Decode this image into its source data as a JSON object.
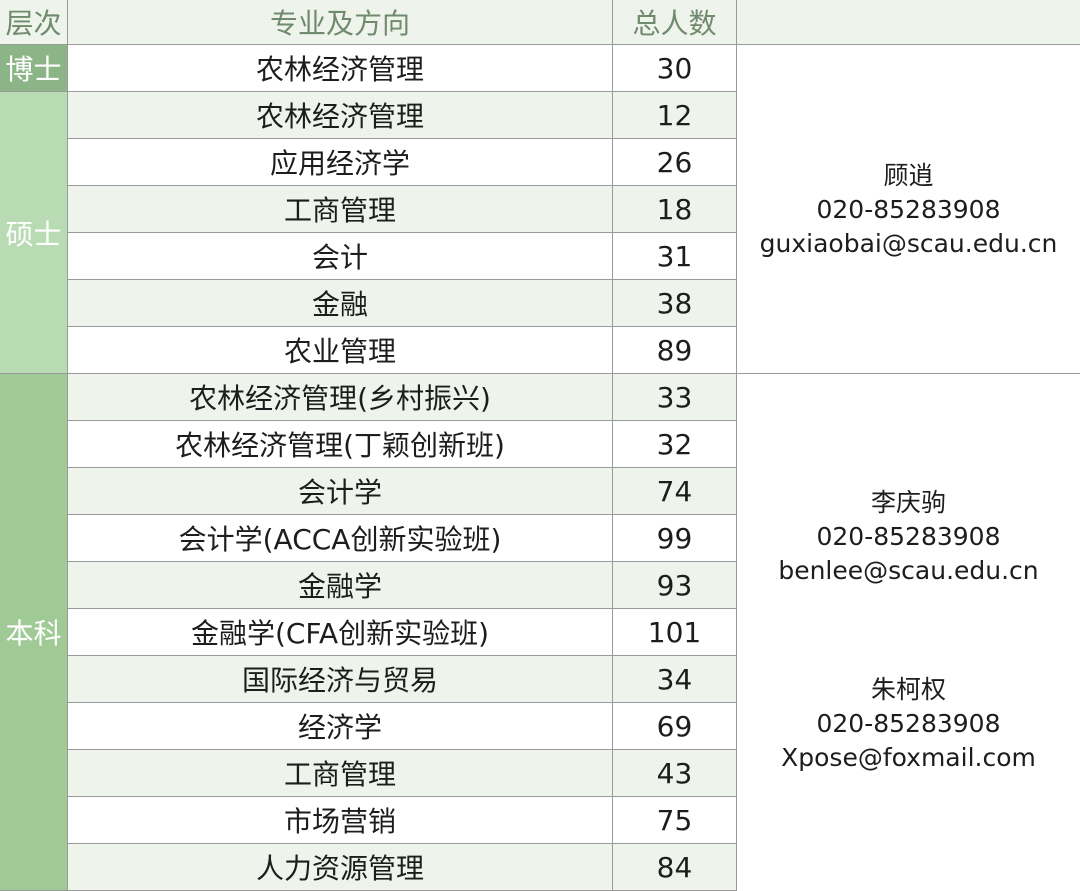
{
  "header": {
    "level": "层次",
    "major": "专业及方向",
    "count": "总人数"
  },
  "levels": [
    {
      "label": "博士",
      "color": "#8bb586"
    },
    {
      "label": "硕士",
      "color": "#b9dbb3"
    },
    {
      "label": "本科",
      "color": "#9fca96"
    }
  ],
  "rows": [
    {
      "major": "农林经济管理",
      "count": "30"
    },
    {
      "major": "农林经济管理",
      "count": "12"
    },
    {
      "major": "应用经济学",
      "count": "26"
    },
    {
      "major": "工商管理",
      "count": "18"
    },
    {
      "major": "会计",
      "count": "31"
    },
    {
      "major": "金融",
      "count": "38"
    },
    {
      "major": "农业管理",
      "count": "89"
    },
    {
      "major": "农林经济管理(乡村振兴)",
      "count": "33"
    },
    {
      "major": "农林经济管理(丁颖创新班)",
      "count": "32"
    },
    {
      "major": "会计学",
      "count": "74"
    },
    {
      "major": "会计学(ACCA创新实验班)",
      "count": "99"
    },
    {
      "major": "金融学",
      "count": "93"
    },
    {
      "major": "金融学(CFA创新实验班)",
      "count": "101"
    },
    {
      "major": "国际经济与贸易",
      "count": "34"
    },
    {
      "major": "经济学",
      "count": "69"
    },
    {
      "major": "工商管理",
      "count": "43"
    },
    {
      "major": "市场营销",
      "count": "75"
    },
    {
      "major": "人力资源管理",
      "count": "84"
    }
  ],
  "contacts": [
    {
      "name": "顾逍",
      "phone": "020-85283908",
      "email": "guxiaobai@scau.edu.cn"
    },
    {
      "name": "李庆驹",
      "phone": "020-85283908",
      "email": "benlee@scau.edu.cn"
    },
    {
      "name": "朱柯权",
      "phone": "020-85283908",
      "email": "Xpose@foxmail.com"
    }
  ]
}
